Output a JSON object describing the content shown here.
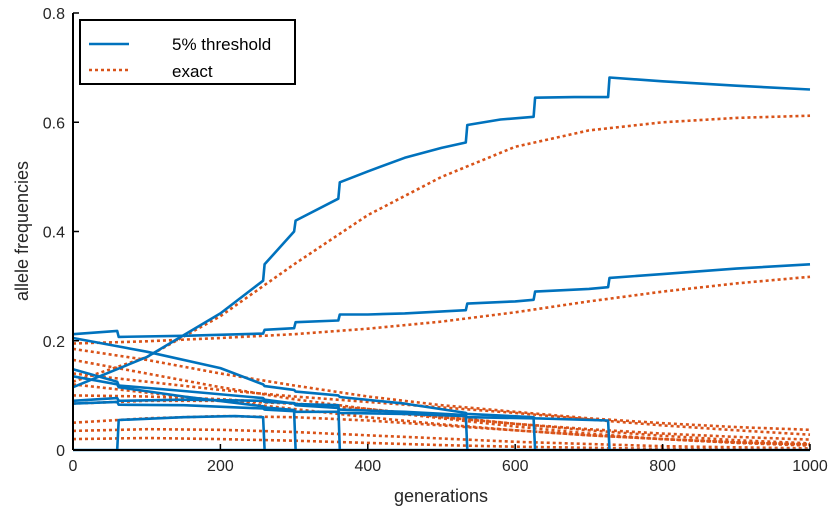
{
  "chart_data": {
    "type": "line",
    "xlabel": "generations",
    "ylabel": "allele frequencies",
    "xlim": [
      0,
      1000
    ],
    "ylim": [
      0,
      0.8
    ],
    "xticks": [
      0,
      200,
      400,
      600,
      800,
      1000
    ],
    "yticks": [
      0,
      0.2,
      0.4,
      0.6,
      0.8
    ],
    "xtick_labels": [
      "0",
      "200",
      "400",
      "600",
      "800",
      "1000"
    ],
    "ytick_labels": [
      "0",
      "0.2",
      "0.4",
      "0.6",
      "0.8"
    ],
    "legend": {
      "placement": "top-left",
      "entries": [
        "5% threshold",
        "exact"
      ]
    },
    "threshold_color": "#0072BD",
    "exact_color": "#D95319",
    "series": [
      {
        "group": "threshold",
        "name": "5% threshold",
        "points": [
          [
            0,
            0.115
          ],
          [
            100,
            0.17
          ],
          [
            200,
            0.25
          ],
          [
            258,
            0.31
          ],
          [
            260,
            0.34
          ],
          [
            300,
            0.4
          ],
          [
            302,
            0.42
          ],
          [
            360,
            0.46
          ],
          [
            362,
            0.49
          ],
          [
            400,
            0.51
          ],
          [
            450,
            0.535
          ],
          [
            500,
            0.553
          ],
          [
            533,
            0.563
          ],
          [
            535,
            0.595
          ],
          [
            580,
            0.605
          ],
          [
            625,
            0.61
          ],
          [
            627,
            0.645
          ],
          [
            680,
            0.646
          ],
          [
            726,
            0.646
          ],
          [
            728,
            0.682
          ],
          [
            800,
            0.675
          ],
          [
            900,
            0.667
          ],
          [
            1000,
            0.66
          ]
        ]
      },
      {
        "group": "threshold",
        "points": [
          [
            0,
            0.212
          ],
          [
            60,
            0.218
          ],
          [
            62,
            0.207
          ],
          [
            150,
            0.209
          ],
          [
            258,
            0.213
          ],
          [
            260,
            0.22
          ],
          [
            300,
            0.223
          ],
          [
            302,
            0.234
          ],
          [
            360,
            0.237
          ],
          [
            362,
            0.248
          ],
          [
            400,
            0.248
          ],
          [
            450,
            0.25
          ],
          [
            533,
            0.256
          ],
          [
            535,
            0.268
          ],
          [
            600,
            0.272
          ],
          [
            625,
            0.275
          ],
          [
            627,
            0.29
          ],
          [
            700,
            0.295
          ],
          [
            726,
            0.298
          ],
          [
            728,
            0.315
          ],
          [
            800,
            0.322
          ],
          [
            900,
            0.332
          ],
          [
            1000,
            0.34
          ]
        ]
      },
      {
        "group": "threshold",
        "points": [
          [
            0,
            0.205
          ],
          [
            100,
            0.18
          ],
          [
            200,
            0.15
          ],
          [
            258,
            0.12
          ],
          [
            260,
            0.117
          ],
          [
            300,
            0.11
          ],
          [
            302,
            0.107
          ],
          [
            360,
            0.1
          ],
          [
            362,
            0.097
          ],
          [
            450,
            0.085
          ],
          [
            533,
            0.068
          ],
          [
            535,
            0.066
          ],
          [
            625,
            0.06
          ],
          [
            627,
            0.058
          ],
          [
            726,
            0.054
          ],
          [
            728,
            0
          ]
        ]
      },
      {
        "group": "threshold",
        "points": [
          [
            0,
            0.148
          ],
          [
            60,
            0.125
          ],
          [
            62,
            0.118
          ],
          [
            150,
            0.108
          ],
          [
            258,
            0.095
          ],
          [
            260,
            0.092
          ],
          [
            300,
            0.085
          ],
          [
            302,
            0.082
          ],
          [
            360,
            0.077
          ],
          [
            362,
            0.074
          ],
          [
            450,
            0.07
          ],
          [
            533,
            0.064
          ],
          [
            535,
            0
          ]
        ]
      },
      {
        "group": "threshold",
        "points": [
          [
            0,
            0.135
          ],
          [
            60,
            0.12
          ],
          [
            62,
            0.115
          ],
          [
            150,
            0.098
          ],
          [
            258,
            0.08
          ],
          [
            260,
            0.078
          ],
          [
            300,
            0.073
          ],
          [
            302,
            0.07
          ],
          [
            360,
            0.07
          ],
          [
            362,
            0.068
          ],
          [
            450,
            0.066
          ],
          [
            533,
            0.062
          ],
          [
            535,
            0.06
          ],
          [
            625,
            0.058
          ],
          [
            627,
            0
          ]
        ]
      },
      {
        "group": "threshold",
        "points": [
          [
            0,
            0.09
          ],
          [
            60,
            0.095
          ],
          [
            62,
            0.09
          ],
          [
            150,
            0.092
          ],
          [
            258,
            0.09
          ],
          [
            260,
            0.088
          ],
          [
            300,
            0.086
          ],
          [
            302,
            0.084
          ],
          [
            360,
            0.082
          ],
          [
            362,
            0
          ]
        ]
      },
      {
        "group": "threshold",
        "points": [
          [
            0,
            0.085
          ],
          [
            60,
            0.088
          ],
          [
            62,
            0.083
          ],
          [
            150,
            0.082
          ],
          [
            258,
            0.076
          ],
          [
            260,
            0.074
          ],
          [
            300,
            0.071
          ],
          [
            302,
            0
          ]
        ]
      },
      {
        "group": "threshold",
        "points": [
          [
            60,
            0
          ],
          [
            62,
            0.055
          ],
          [
            150,
            0.06
          ],
          [
            220,
            0.062
          ],
          [
            258,
            0.06
          ],
          [
            260,
            0
          ]
        ]
      },
      {
        "group": "threshold",
        "points": [
          [
            0,
            0
          ],
          [
            1000,
            0
          ]
        ]
      },
      {
        "group": "exact",
        "points": [
          [
            0,
            0.125
          ],
          [
            100,
            0.17
          ],
          [
            200,
            0.245
          ],
          [
            300,
            0.34
          ],
          [
            400,
            0.43
          ],
          [
            500,
            0.5
          ],
          [
            600,
            0.555
          ],
          [
            700,
            0.585
          ],
          [
            800,
            0.6
          ],
          [
            900,
            0.608
          ],
          [
            1000,
            0.612
          ]
        ]
      },
      {
        "group": "exact",
        "points": [
          [
            0,
            0.195
          ],
          [
            100,
            0.199
          ],
          [
            200,
            0.205
          ],
          [
            300,
            0.212
          ],
          [
            400,
            0.222
          ],
          [
            500,
            0.235
          ],
          [
            600,
            0.252
          ],
          [
            700,
            0.272
          ],
          [
            800,
            0.29
          ],
          [
            900,
            0.305
          ],
          [
            1000,
            0.317
          ]
        ]
      },
      {
        "group": "exact",
        "points": [
          [
            0,
            0.185
          ],
          [
            100,
            0.165
          ],
          [
            200,
            0.14
          ],
          [
            300,
            0.118
          ],
          [
            400,
            0.098
          ],
          [
            500,
            0.082
          ],
          [
            600,
            0.07
          ],
          [
            700,
            0.058
          ],
          [
            800,
            0.049
          ],
          [
            900,
            0.042
          ],
          [
            1000,
            0.037
          ]
        ]
      },
      {
        "group": "exact",
        "points": [
          [
            0,
            0.165
          ],
          [
            100,
            0.14
          ],
          [
            200,
            0.115
          ],
          [
            300,
            0.093
          ],
          [
            400,
            0.075
          ],
          [
            500,
            0.06
          ],
          [
            600,
            0.048
          ],
          [
            700,
            0.038
          ],
          [
            800,
            0.03
          ],
          [
            900,
            0.024
          ],
          [
            1000,
            0.019
          ]
        ]
      },
      {
        "group": "exact",
        "points": [
          [
            0,
            0.14
          ],
          [
            100,
            0.125
          ],
          [
            200,
            0.11
          ],
          [
            300,
            0.098
          ],
          [
            400,
            0.088
          ],
          [
            500,
            0.078
          ],
          [
            600,
            0.068
          ],
          [
            700,
            0.056
          ],
          [
            800,
            0.045
          ],
          [
            900,
            0.036
          ],
          [
            1000,
            0.028
          ]
        ]
      },
      {
        "group": "exact",
        "points": [
          [
            0,
            0.12
          ],
          [
            100,
            0.105
          ],
          [
            200,
            0.09
          ],
          [
            300,
            0.075
          ],
          [
            400,
            0.06
          ],
          [
            500,
            0.047
          ],
          [
            600,
            0.036
          ],
          [
            700,
            0.027
          ],
          [
            800,
            0.02
          ],
          [
            900,
            0.014
          ],
          [
            1000,
            0.01
          ]
        ]
      },
      {
        "group": "exact",
        "points": [
          [
            0,
            0.1
          ],
          [
            100,
            0.098
          ],
          [
            200,
            0.093
          ],
          [
            300,
            0.085
          ],
          [
            400,
            0.073
          ],
          [
            500,
            0.058
          ],
          [
            600,
            0.043
          ],
          [
            700,
            0.03
          ],
          [
            800,
            0.02
          ],
          [
            900,
            0.013
          ],
          [
            1000,
            0.008
          ]
        ]
      },
      {
        "group": "exact",
        "points": [
          [
            0,
            0.085
          ],
          [
            100,
            0.09
          ],
          [
            200,
            0.09
          ],
          [
            300,
            0.085
          ],
          [
            400,
            0.075
          ],
          [
            500,
            0.062
          ],
          [
            600,
            0.048
          ],
          [
            700,
            0.036
          ],
          [
            800,
            0.026
          ],
          [
            900,
            0.018
          ],
          [
            1000,
            0.012
          ]
        ]
      },
      {
        "group": "exact",
        "points": [
          [
            0,
            0.05
          ],
          [
            100,
            0.058
          ],
          [
            200,
            0.062
          ],
          [
            300,
            0.06
          ],
          [
            400,
            0.054
          ],
          [
            500,
            0.045
          ],
          [
            600,
            0.036
          ],
          [
            700,
            0.027
          ],
          [
            800,
            0.02
          ],
          [
            900,
            0.014
          ],
          [
            1000,
            0.01
          ]
        ]
      },
      {
        "group": "exact",
        "points": [
          [
            0,
            0.035
          ],
          [
            100,
            0.038
          ],
          [
            200,
            0.037
          ],
          [
            300,
            0.033
          ],
          [
            400,
            0.027
          ],
          [
            500,
            0.021
          ],
          [
            600,
            0.015
          ],
          [
            700,
            0.011
          ],
          [
            800,
            0.007
          ],
          [
            900,
            0.005
          ],
          [
            1000,
            0.003
          ]
        ]
      },
      {
        "group": "exact",
        "points": [
          [
            0,
            0.02
          ],
          [
            100,
            0.022
          ],
          [
            200,
            0.02
          ],
          [
            300,
            0.017
          ],
          [
            400,
            0.013
          ],
          [
            500,
            0.009
          ],
          [
            600,
            0.006
          ],
          [
            700,
            0.004
          ],
          [
            800,
            0.002
          ],
          [
            900,
            0.001
          ],
          [
            1000,
            0.001
          ]
        ]
      }
    ]
  }
}
